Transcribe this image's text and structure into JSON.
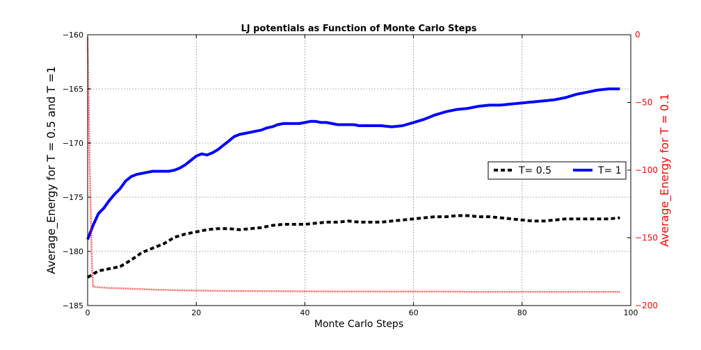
{
  "chart_data": {
    "type": "line",
    "title": "LJ potentials as Function of Monte Carlo Steps",
    "xlabel": "Monte Carlo Steps",
    "ylabel": "Average_Energy for T = 0.5 and T =1",
    "y2label": "Average_Energy for T = 0.1",
    "xlim": [
      0,
      100
    ],
    "ylim": [
      -185,
      -160
    ],
    "y2lim": [
      -200,
      0
    ],
    "x_ticks": [
      "0",
      "20",
      "40",
      "60",
      "80",
      "100"
    ],
    "y_ticks": [
      "−160",
      "−165",
      "−170",
      "−175",
      "−180",
      "−185"
    ],
    "y2_ticks": [
      "0",
      "−50",
      "−100",
      "−150",
      "−200"
    ],
    "grid": true,
    "legend_position": "center-right",
    "series": [
      {
        "name": "T= 0.5",
        "axis": "left",
        "style": "dashed",
        "color": "#000000",
        "x": [
          0,
          2,
          4,
          6,
          8,
          10,
          12,
          14,
          16,
          18,
          20,
          22,
          24,
          26,
          28,
          30,
          32,
          34,
          36,
          38,
          40,
          42,
          44,
          46,
          48,
          50,
          52,
          54,
          56,
          58,
          60,
          62,
          64,
          66,
          68,
          70,
          72,
          74,
          76,
          78,
          80,
          82,
          84,
          86,
          88,
          90,
          92,
          94,
          96,
          98
        ],
        "y": [
          -182.4,
          -181.8,
          -181.6,
          -181.4,
          -180.8,
          -180.1,
          -179.7,
          -179.3,
          -178.7,
          -178.4,
          -178.2,
          -178.0,
          -177.9,
          -177.9,
          -178.0,
          -177.9,
          -177.8,
          -177.6,
          -177.5,
          -177.5,
          -177.5,
          -177.4,
          -177.3,
          -177.3,
          -177.2,
          -177.3,
          -177.3,
          -177.3,
          -177.2,
          -177.1,
          -177.0,
          -176.9,
          -176.8,
          -176.8,
          -176.7,
          -176.7,
          -176.8,
          -176.8,
          -176.9,
          -177.0,
          -177.1,
          -177.2,
          -177.2,
          -177.1,
          -177.0,
          -177.0,
          -177.0,
          -177.0,
          -177.0,
          -176.9
        ]
      },
      {
        "name": "T= 1",
        "axis": "left",
        "style": "solid",
        "color": "#0000ff",
        "x": [
          0,
          1,
          2,
          3,
          4,
          5,
          6,
          7,
          8,
          9,
          10,
          11,
          12,
          13,
          14,
          15,
          16,
          17,
          18,
          19,
          20,
          21,
          22,
          23,
          24,
          25,
          26,
          27,
          28,
          29,
          30,
          31,
          32,
          33,
          34,
          35,
          36,
          37,
          38,
          39,
          40,
          41,
          42,
          43,
          44,
          45,
          46,
          47,
          48,
          49,
          50,
          52,
          54,
          56,
          58,
          60,
          62,
          64,
          66,
          68,
          70,
          72,
          74,
          76,
          78,
          80,
          82,
          84,
          86,
          88,
          90,
          92,
          94,
          96,
          98
        ],
        "y": [
          -178.9,
          -177.6,
          -176.5,
          -176.0,
          -175.3,
          -174.7,
          -174.2,
          -173.5,
          -173.1,
          -172.9,
          -172.8,
          -172.7,
          -172.6,
          -172.6,
          -172.6,
          -172.6,
          -172.5,
          -172.3,
          -172.0,
          -171.6,
          -171.2,
          -171.0,
          -171.1,
          -170.9,
          -170.6,
          -170.2,
          -169.8,
          -169.4,
          -169.2,
          -169.1,
          -169.0,
          -168.9,
          -168.8,
          -168.6,
          -168.5,
          -168.3,
          -168.2,
          -168.2,
          -168.2,
          -168.2,
          -168.1,
          -168.0,
          -168.0,
          -168.1,
          -168.1,
          -168.2,
          -168.3,
          -168.3,
          -168.3,
          -168.3,
          -168.4,
          -168.4,
          -168.4,
          -168.5,
          -168.4,
          -168.1,
          -167.8,
          -167.4,
          -167.1,
          -166.9,
          -166.8,
          -166.6,
          -166.5,
          -166.5,
          -166.4,
          -166.3,
          -166.2,
          -166.1,
          -166.0,
          -165.8,
          -165.5,
          -165.3,
          -165.1,
          -165.0,
          -165.0
        ]
      },
      {
        "axis": "right",
        "style": "dotted",
        "color": "#ff0000",
        "x": [
          0,
          0.4,
          0.8,
          1,
          2,
          4,
          6,
          8,
          10,
          12,
          14,
          16,
          18,
          20,
          25,
          30,
          35,
          40,
          45,
          50,
          55,
          60,
          65,
          70,
          75,
          80,
          85,
          90,
          95,
          98
        ],
        "y": [
          -2,
          -100,
          -170,
          -186,
          -186.5,
          -187,
          -187.3,
          -187.6,
          -187.9,
          -188.2,
          -188.4,
          -188.6,
          -188.8,
          -189,
          -189.2,
          -189.3,
          -189.4,
          -189.5,
          -189.6,
          -189.6,
          -189.7,
          -189.7,
          -189.7,
          -189.8,
          -189.8,
          -189.8,
          -189.8,
          -189.8,
          -189.9,
          -189.9
        ]
      }
    ]
  }
}
